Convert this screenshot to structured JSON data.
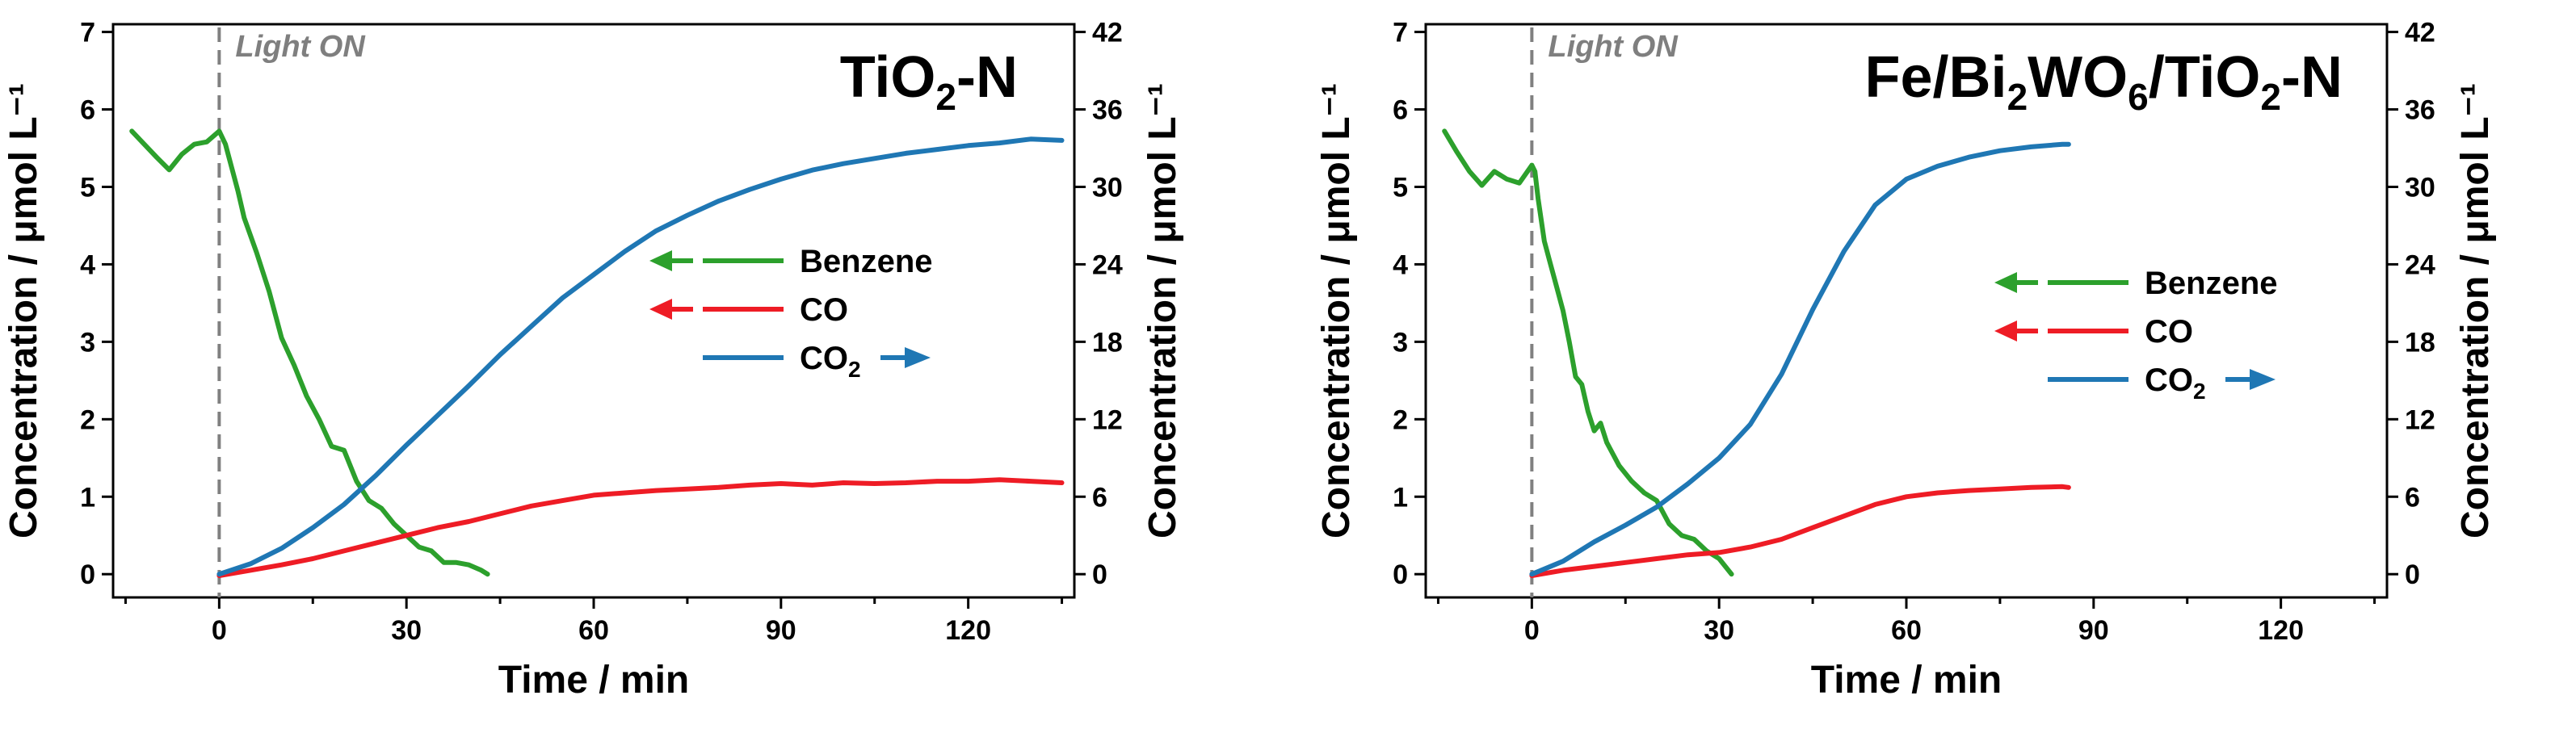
{
  "chart_data": [
    {
      "type": "line",
      "title": "TiO₂-N",
      "title_parts": {
        "pre": "TiO",
        "sub": "2",
        "post": "-N"
      },
      "annotation": "Light ON",
      "annotation_x": 0,
      "xlabel": "Time / min",
      "ylabel_left": "Concentration / μmol L⁻¹",
      "ylabel_right": "Concentration / μmol L⁻¹",
      "xlim": [
        -17,
        137
      ],
      "ylim_left": [
        -0.3,
        7.1
      ],
      "ylim_right": [
        -1.8,
        42.6
      ],
      "x_ticks": [
        0,
        30,
        60,
        90,
        120
      ],
      "y_ticks_left": [
        0,
        1,
        2,
        3,
        4,
        5,
        6,
        7
      ],
      "y_ticks_right": [
        0,
        6,
        12,
        18,
        24,
        30,
        36,
        42
      ],
      "legend": [
        {
          "name": "Benzene",
          "axis": "left",
          "color": "#2ca02c",
          "arrow": "left"
        },
        {
          "name": "CO",
          "axis": "left",
          "color": "#ee1c25",
          "arrow": "left"
        },
        {
          "name": "CO2",
          "label_pre": "CO",
          "label_sub": "2",
          "axis": "right",
          "color": "#1f77b4",
          "arrow": "right"
        }
      ],
      "series": [
        {
          "name": "Benzene",
          "axis": "left",
          "color": "#2ca02c",
          "x": [
            -14,
            -12,
            -10,
            -8,
            -6,
            -4,
            -2,
            0,
            1,
            2,
            3,
            4,
            6,
            8,
            10,
            12,
            14,
            16,
            18,
            20,
            22,
            24,
            26,
            28,
            30,
            32,
            34,
            36,
            38,
            40,
            42,
            43
          ],
          "y": [
            5.72,
            5.55,
            5.38,
            5.22,
            5.42,
            5.55,
            5.58,
            5.72,
            5.55,
            5.25,
            4.95,
            4.6,
            4.15,
            3.65,
            3.05,
            2.7,
            2.3,
            2.0,
            1.65,
            1.6,
            1.2,
            0.95,
            0.85,
            0.65,
            0.5,
            0.35,
            0.3,
            0.15,
            0.15,
            0.12,
            0.05,
            0.0
          ]
        },
        {
          "name": "CO",
          "axis": "left",
          "color": "#ee1c25",
          "x": [
            0,
            5,
            10,
            15,
            20,
            25,
            30,
            35,
            40,
            45,
            50,
            55,
            60,
            65,
            70,
            75,
            80,
            85,
            90,
            95,
            100,
            105,
            110,
            115,
            120,
            125,
            130,
            135
          ],
          "y": [
            -0.02,
            0.05,
            0.12,
            0.2,
            0.3,
            0.4,
            0.5,
            0.6,
            0.68,
            0.78,
            0.88,
            0.95,
            1.02,
            1.05,
            1.08,
            1.1,
            1.12,
            1.15,
            1.17,
            1.15,
            1.18,
            1.17,
            1.18,
            1.2,
            1.2,
            1.22,
            1.2,
            1.18
          ]
        },
        {
          "name": "CO2",
          "axis": "right",
          "color": "#1f77b4",
          "x": [
            0,
            5,
            10,
            15,
            20,
            25,
            30,
            35,
            40,
            45,
            50,
            55,
            60,
            65,
            70,
            75,
            80,
            85,
            90,
            95,
            100,
            105,
            110,
            115,
            120,
            125,
            130,
            135
          ],
          "y": [
            0,
            0.8,
            2.0,
            3.6,
            5.4,
            7.6,
            10.0,
            12.3,
            14.6,
            17.0,
            19.2,
            21.4,
            23.2,
            25.0,
            26.6,
            27.8,
            28.9,
            29.8,
            30.6,
            31.3,
            31.8,
            32.2,
            32.6,
            32.9,
            33.2,
            33.4,
            33.7,
            33.6
          ]
        }
      ]
    },
    {
      "type": "line",
      "title": "Fe/Bi₂WO₆/TiO₂-N",
      "title_parts": {
        "pre": "Fe/Bi",
        "sub1": "2",
        "mid": "WO",
        "sub2": "6",
        "mid2": "/TiO",
        "sub3": "2",
        "post": "-N"
      },
      "annotation": "Light ON",
      "annotation_x": 0,
      "xlabel": "Time / min",
      "ylabel_left": "Concentration / μmol L⁻¹",
      "ylabel_right": "Concentration / μmol L⁻¹",
      "xlim": [
        -17,
        137
      ],
      "ylim_left": [
        -0.3,
        7.1
      ],
      "ylim_right": [
        -1.8,
        42.6
      ],
      "x_ticks": [
        0,
        30,
        60,
        90,
        120
      ],
      "y_ticks_left": [
        0,
        1,
        2,
        3,
        4,
        5,
        6,
        7
      ],
      "y_ticks_right": [
        0,
        6,
        12,
        18,
        24,
        30,
        36,
        42
      ],
      "legend": [
        {
          "name": "Benzene",
          "axis": "left",
          "color": "#2ca02c",
          "arrow": "left"
        },
        {
          "name": "CO",
          "axis": "left",
          "color": "#ee1c25",
          "arrow": "left"
        },
        {
          "name": "CO2",
          "label_pre": "CO",
          "label_sub": "2",
          "axis": "right",
          "color": "#1f77b4",
          "arrow": "right"
        }
      ],
      "series": [
        {
          "name": "Benzene",
          "axis": "left",
          "color": "#2ca02c",
          "x": [
            -14,
            -12,
            -10,
            -8,
            -6,
            -4,
            -2,
            0,
            0.5,
            1,
            2,
            3,
            4,
            5,
            6,
            7,
            8,
            9,
            10,
            11,
            12,
            13,
            14,
            16,
            18,
            20,
            22,
            24,
            26,
            28,
            30,
            32
          ],
          "y": [
            5.72,
            5.45,
            5.2,
            5.02,
            5.2,
            5.1,
            5.05,
            5.28,
            5.2,
            4.85,
            4.3,
            4.0,
            3.7,
            3.4,
            3.0,
            2.55,
            2.45,
            2.1,
            1.85,
            1.95,
            1.7,
            1.55,
            1.4,
            1.2,
            1.05,
            0.95,
            0.65,
            0.5,
            0.45,
            0.3,
            0.2,
            0.0
          ]
        },
        {
          "name": "CO",
          "axis": "left",
          "color": "#ee1c25",
          "x": [
            0,
            5,
            10,
            15,
            20,
            25,
            30,
            35,
            40,
            45,
            50,
            55,
            60,
            65,
            70,
            75,
            80,
            85,
            86
          ],
          "y": [
            -0.02,
            0.05,
            0.1,
            0.15,
            0.2,
            0.25,
            0.28,
            0.35,
            0.45,
            0.6,
            0.75,
            0.9,
            1.0,
            1.05,
            1.08,
            1.1,
            1.12,
            1.13,
            1.12
          ]
        },
        {
          "name": "CO2",
          "axis": "right",
          "color": "#1f77b4",
          "x": [
            0,
            5,
            10,
            15,
            20,
            25,
            30,
            35,
            40,
            45,
            50,
            55,
            60,
            65,
            70,
            75,
            80,
            85,
            86
          ],
          "y": [
            0,
            1.0,
            2.5,
            3.8,
            5.2,
            7.0,
            9.0,
            11.6,
            15.5,
            20.5,
            25.0,
            28.6,
            30.6,
            31.6,
            32.3,
            32.8,
            33.1,
            33.3,
            33.3
          ]
        }
      ]
    }
  ]
}
